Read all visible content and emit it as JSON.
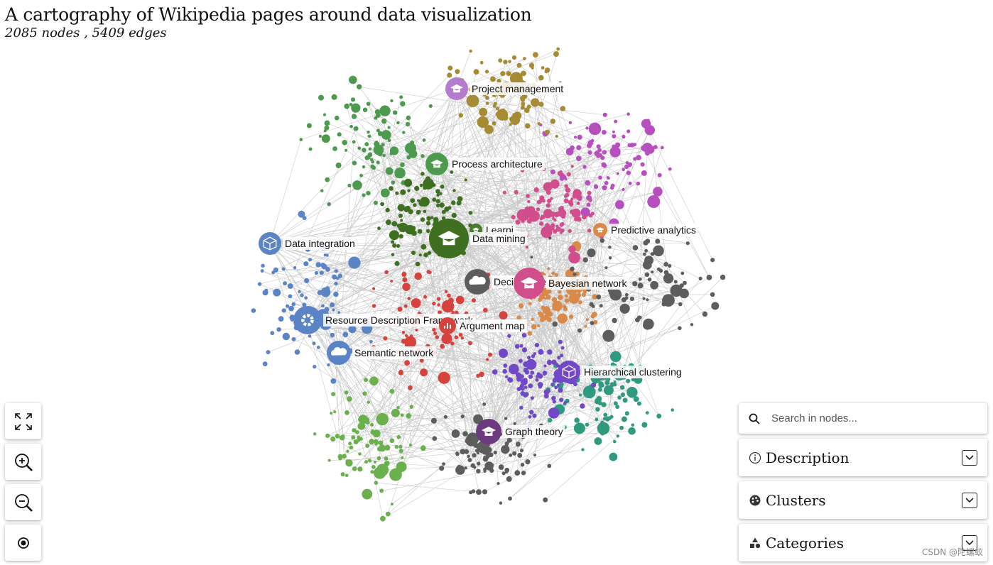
{
  "header": {
    "title": "A cartography of Wikipedia pages around data visualization",
    "subtitle": "2085 nodes , 5409 edges"
  },
  "graph": {
    "labels": [
      {
        "text": "Project management",
        "color": "#b57bcf",
        "icon": "graduation-cap-icon"
      },
      {
        "text": "Process architecture",
        "color": "#4d9a4f",
        "icon": "graduation-cap-icon"
      },
      {
        "text": "Data integration",
        "color": "#5b84c7",
        "icon": "cube-icon"
      },
      {
        "text": "Learni",
        "color": "#4a7a2e",
        "icon": "graduation-cap-icon"
      },
      {
        "text": "Predictive analytics",
        "color": "#d98a4a",
        "icon": "graduation-cap-icon"
      },
      {
        "text": "Data mining",
        "color": "#3f6f21",
        "icon": "graduation-cap-icon"
      },
      {
        "text": "Decision tre",
        "color": "#5d5d5d",
        "icon": "cloud-icon"
      },
      {
        "text": "Bayesian network",
        "color": "#d14d8c",
        "icon": "graduation-cap-icon"
      },
      {
        "text": "Resource Description Framework",
        "color": "#5b84c7",
        "icon": "gear-icon"
      },
      {
        "text": "Argument map",
        "color": "#d8423d",
        "icon": "bar-chart-icon"
      },
      {
        "text": "Semantic network",
        "color": "#5b84c7",
        "icon": "cloud-icon"
      },
      {
        "text": "Hierarchical clustering",
        "color": "#7048c8",
        "icon": "cube-icon"
      },
      {
        "text": "Graph theory",
        "color": "#6d3a7d",
        "icon": "graduation-cap-icon"
      }
    ],
    "cluster_colors": [
      "#5b84c7",
      "#4d9a4f",
      "#6ab04c",
      "#d8423d",
      "#b74fbf",
      "#a68b35",
      "#2f9a7f",
      "#7048c8",
      "#d98a4a",
      "#5d5d5d",
      "#3f6f21",
      "#d14d8c"
    ]
  },
  "controls": {
    "fullscreen_icon": "fullscreen-icon",
    "zoom_in_icon": "zoom-in-icon",
    "zoom_out_icon": "zoom-out-icon",
    "center_icon": "center-icon"
  },
  "sidebar": {
    "search": {
      "placeholder": "Search in nodes..."
    },
    "sections": [
      {
        "label": "Description",
        "icon": "info-icon"
      },
      {
        "label": "Clusters",
        "icon": "palette-icon"
      },
      {
        "label": "Categories",
        "icon": "shapes-icon"
      }
    ]
  },
  "watermark": "CSDN @陀螺蚁"
}
